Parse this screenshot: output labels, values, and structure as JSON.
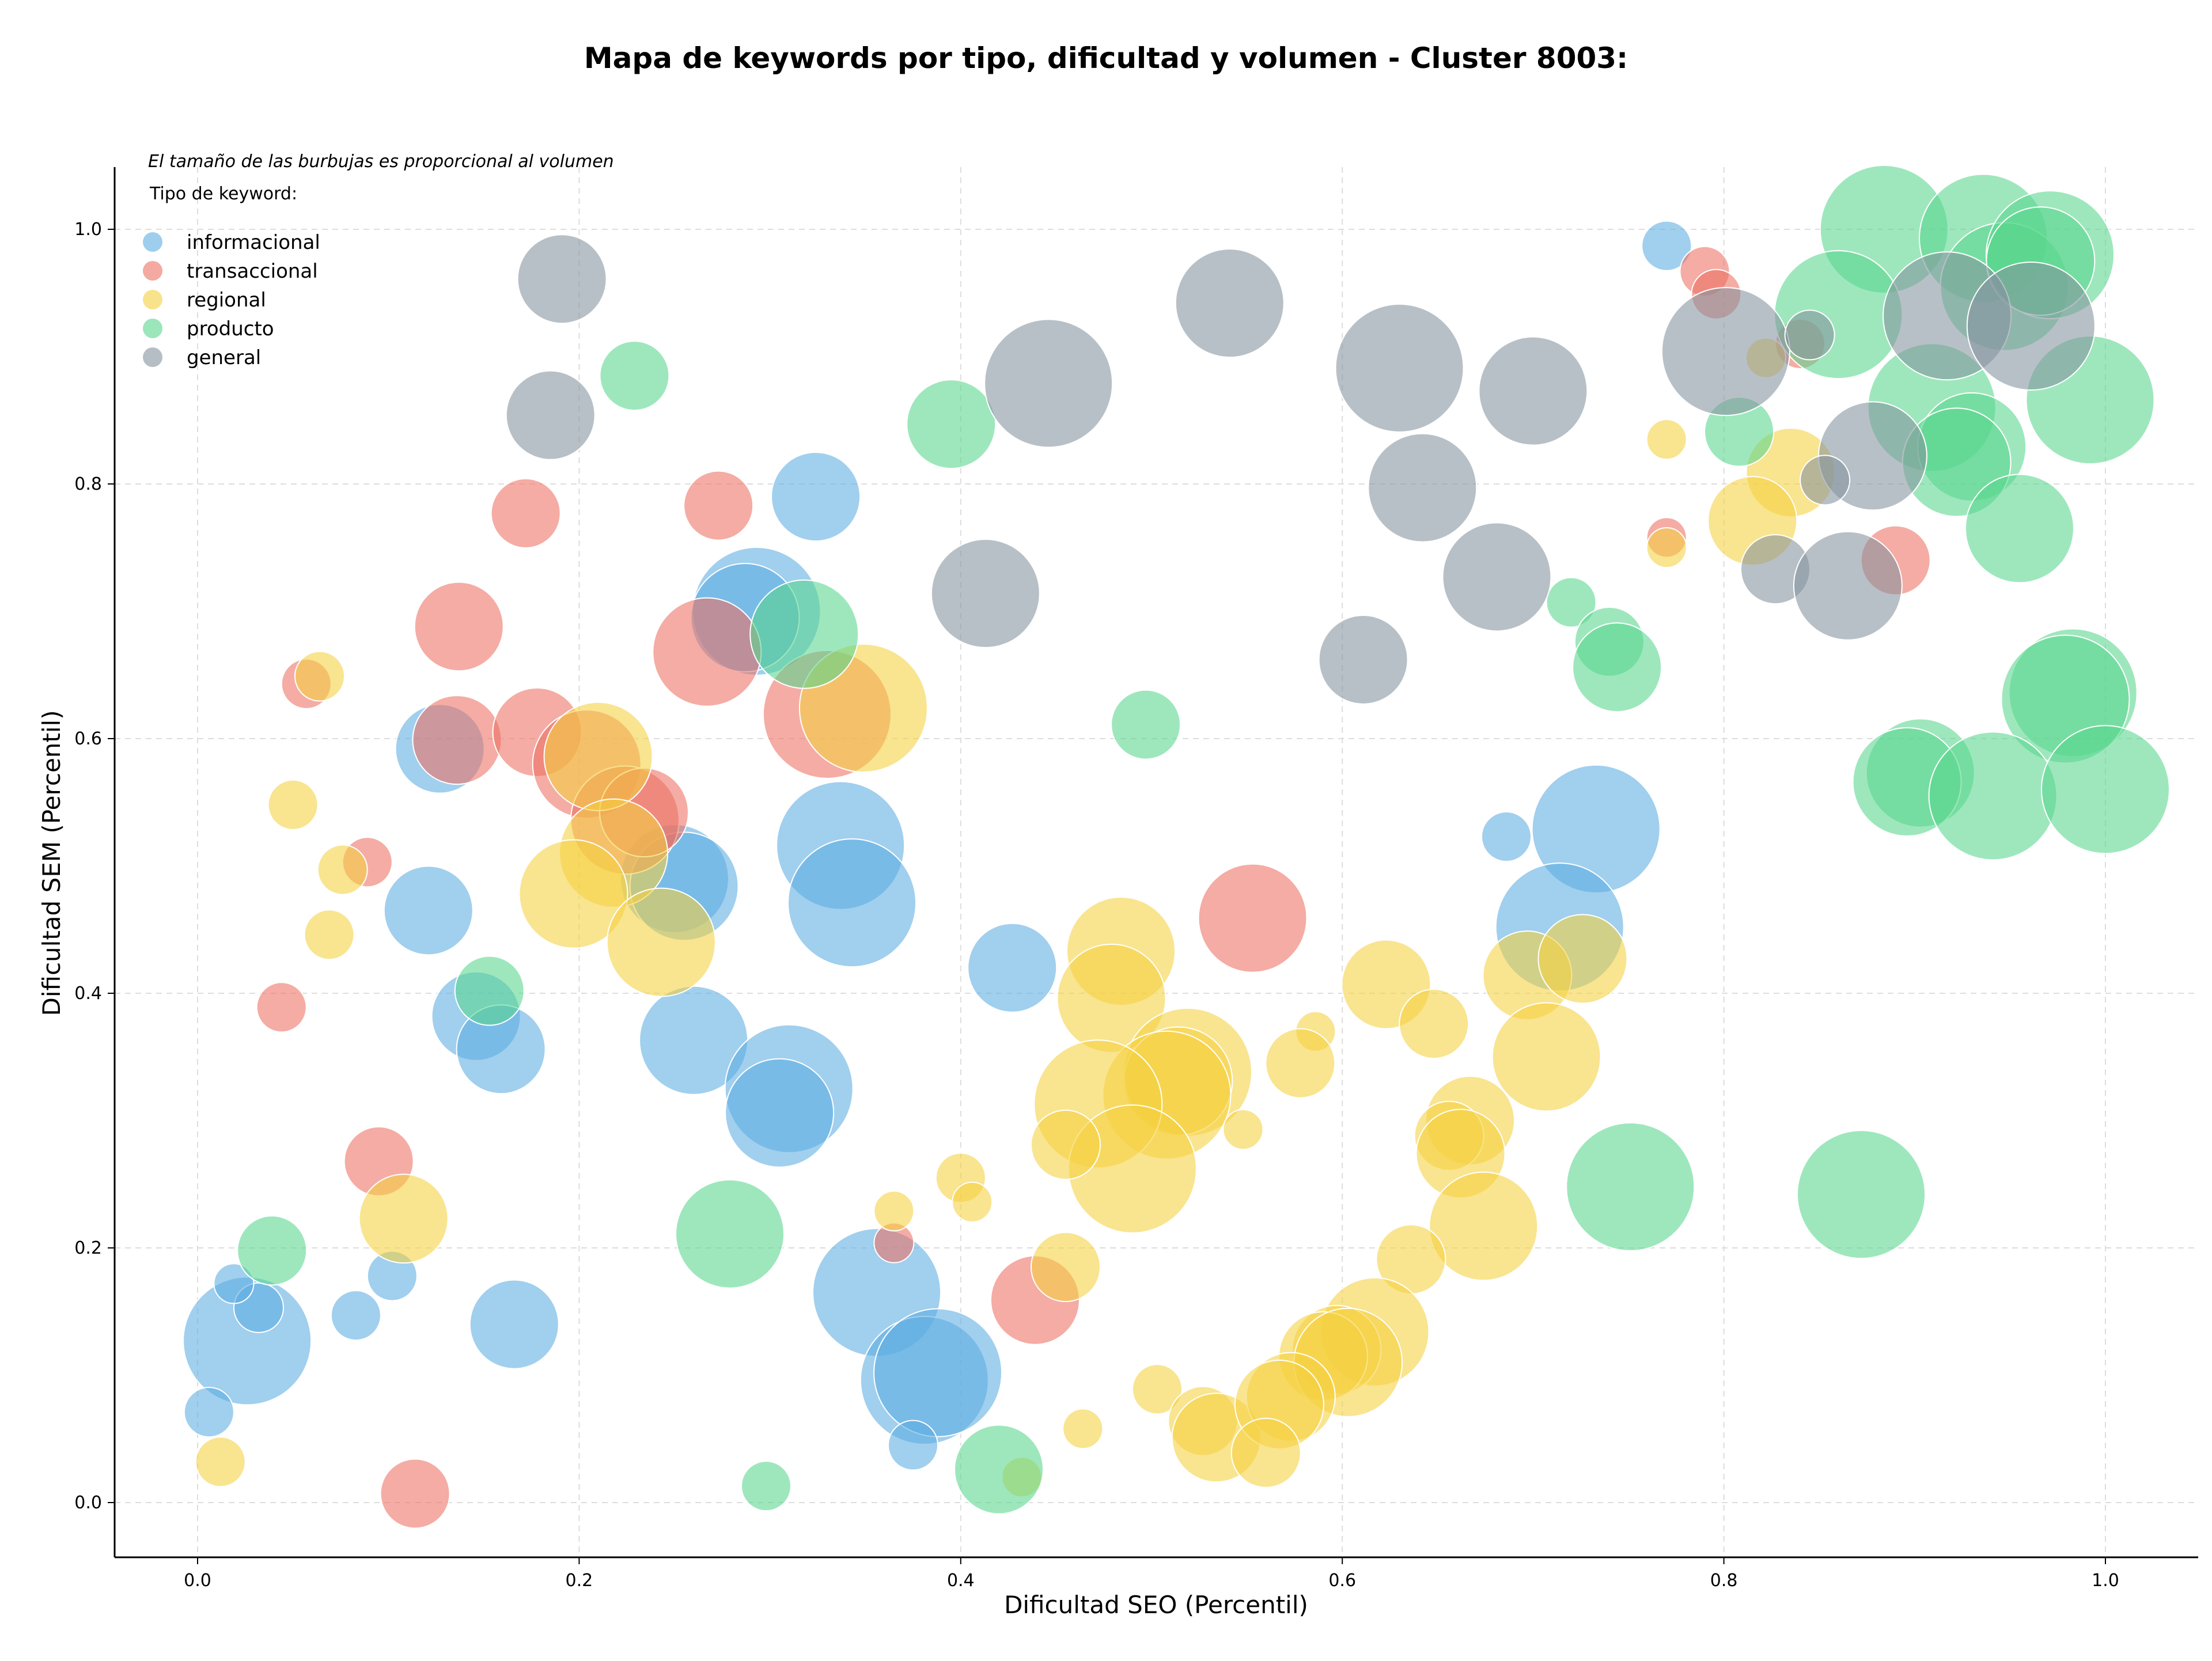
{
  "chart_data": {
    "type": "scatter",
    "title": "Mapa de keywords por tipo, dificultad y volumen - Cluster 8003:",
    "subtitle": "El tamaño de las burbujas es proporcional al volumen",
    "xlabel": "Dificultad SEO (Percentil)",
    "ylabel": "Dificultad SEM (Percentil)",
    "xlim": [
      -0.043,
      1.048
    ],
    "ylim": [
      -0.043,
      1.048
    ],
    "x_ticks": [
      "0.0",
      "0.2",
      "0.4",
      "0.6",
      "0.8",
      "1.0"
    ],
    "y_ticks": [
      "0.0",
      "0.2",
      "0.4",
      "0.6",
      "0.8",
      "1.0"
    ],
    "grid": true,
    "legend_title": "Tipo de keyword:",
    "legend_position": "top-left",
    "size_encoding": "volume",
    "series": [
      {
        "name": "informacional",
        "color": "#5dade2",
        "points": [
          [
            0.77,
            0.987,
            1
          ],
          [
            0.324,
            0.79,
            3
          ],
          [
            0.293,
            0.7,
            5
          ],
          [
            0.287,
            0.695,
            4
          ],
          [
            0.127,
            0.592,
            3
          ],
          [
            0.337,
            0.516,
            5
          ],
          [
            0.25,
            0.49,
            4
          ],
          [
            0.255,
            0.484,
            4
          ],
          [
            0.343,
            0.471,
            5
          ],
          [
            0.121,
            0.465,
            3
          ],
          [
            0.686,
            0.523,
            1
          ],
          [
            0.733,
            0.529,
            5
          ],
          [
            0.714,
            0.452,
            5
          ],
          [
            0.427,
            0.42,
            3
          ],
          [
            0.146,
            0.382,
            3
          ],
          [
            0.159,
            0.356,
            3
          ],
          [
            0.26,
            0.363,
            4
          ],
          [
            0.31,
            0.325,
            5
          ],
          [
            0.305,
            0.306,
            4
          ],
          [
            0.356,
            0.165,
            5
          ],
          [
            0.102,
            0.178,
            1
          ],
          [
            0.166,
            0.14,
            3
          ],
          [
            0.026,
            0.127,
            5
          ],
          [
            0.032,
            0.153,
            1
          ],
          [
            0.019,
            0.172,
            0.5
          ],
          [
            0.083,
            0.147,
            1
          ],
          [
            0.006,
            0.071,
            1
          ],
          [
            0.381,
            0.096,
            5
          ],
          [
            0.388,
            0.102,
            5
          ],
          [
            0.375,
            0.045,
            1
          ]
        ]
      },
      {
        "name": "transaccional",
        "color": "#ec7063",
        "points": [
          [
            0.79,
            0.967,
            1
          ],
          [
            0.796,
            0.949,
            1
          ],
          [
            0.84,
            0.91,
            1
          ],
          [
            0.172,
            0.777,
            2
          ],
          [
            0.273,
            0.783,
            2
          ],
          [
            0.137,
            0.688,
            3
          ],
          [
            0.267,
            0.668,
            4
          ],
          [
            0.057,
            0.643,
            1
          ],
          [
            0.136,
            0.599,
            3
          ],
          [
            0.178,
            0.605,
            3
          ],
          [
            0.204,
            0.58,
            4
          ],
          [
            0.33,
            0.619,
            5
          ],
          [
            0.224,
            0.536,
            4
          ],
          [
            0.234,
            0.542,
            3
          ],
          [
            0.089,
            0.503,
            1
          ],
          [
            0.553,
            0.459,
            4
          ],
          [
            0.044,
            0.389,
            1
          ],
          [
            0.77,
            0.758,
            0.5
          ],
          [
            0.89,
            0.74,
            2
          ],
          [
            0.095,
            0.268,
            2
          ],
          [
            0.365,
            0.204,
            0.5
          ],
          [
            0.439,
            0.159,
            3
          ],
          [
            0.114,
            0.007,
            2
          ]
        ]
      },
      {
        "name": "regional",
        "color": "#f4d03f",
        "points": [
          [
            0.064,
            0.649,
            1
          ],
          [
            0.349,
            0.624,
            5
          ],
          [
            0.21,
            0.586,
            4
          ],
          [
            0.05,
            0.548,
            1
          ],
          [
            0.218,
            0.51,
            4
          ],
          [
            0.076,
            0.497,
            1
          ],
          [
            0.197,
            0.478,
            4
          ],
          [
            0.069,
            0.446,
            1
          ],
          [
            0.243,
            0.44,
            4
          ],
          [
            0.77,
            0.835,
            0.5
          ],
          [
            0.822,
            0.899,
            0.5
          ],
          [
            0.835,
            0.809,
            3
          ],
          [
            0.815,
            0.771,
            3
          ],
          [
            0.77,
            0.75,
            0.5
          ],
          [
            0.484,
            0.433,
            4
          ],
          [
            0.479,
            0.396,
            4
          ],
          [
            0.623,
            0.407,
            3
          ],
          [
            0.697,
            0.414,
            3
          ],
          [
            0.726,
            0.427,
            3
          ],
          [
            0.648,
            0.376,
            2
          ],
          [
            0.586,
            0.37,
            0.5
          ],
          [
            0.707,
            0.35,
            4
          ],
          [
            0.519,
            0.338,
            5
          ],
          [
            0.514,
            0.331,
            4
          ],
          [
            0.508,
            0.32,
            5
          ],
          [
            0.578,
            0.345,
            2
          ],
          [
            0.472,
            0.313,
            5
          ],
          [
            0.49,
            0.262,
            5
          ],
          [
            0.548,
            0.293,
            0.5
          ],
          [
            0.455,
            0.281,
            2
          ],
          [
            0.667,
            0.3,
            3
          ],
          [
            0.656,
            0.288,
            2
          ],
          [
            0.662,
            0.274,
            3
          ],
          [
            0.4,
            0.255,
            1
          ],
          [
            0.406,
            0.236,
            0.5
          ],
          [
            0.365,
            0.229,
            0.5
          ],
          [
            0.674,
            0.217,
            4
          ],
          [
            0.108,
            0.223,
            3
          ],
          [
            0.455,
            0.185,
            2
          ],
          [
            0.636,
            0.191,
            2
          ],
          [
            0.617,
            0.134,
            4
          ],
          [
            0.597,
            0.12,
            3
          ],
          [
            0.59,
            0.115,
            3
          ],
          [
            0.603,
            0.11,
            4
          ],
          [
            0.503,
            0.089,
            1
          ],
          [
            0.527,
            0.064,
            2
          ],
          [
            0.534,
            0.051,
            3
          ],
          [
            0.573,
            0.083,
            3
          ],
          [
            0.567,
            0.077,
            3
          ],
          [
            0.56,
            0.039,
            2
          ],
          [
            0.464,
            0.058,
            0.5
          ],
          [
            0.432,
            0.02,
            0.5
          ],
          [
            0.012,
            0.032,
            1
          ]
        ]
      },
      {
        "name": "producto",
        "color": "#58d68d",
        "points": [
          [
            0.884,
            1.0,
            5
          ],
          [
            0.936,
            0.993,
            5
          ],
          [
            0.947,
            0.955,
            5
          ],
          [
            0.971,
            0.98,
            5
          ],
          [
            0.966,
            0.975,
            4
          ],
          [
            0.86,
            0.933,
            5
          ],
          [
            0.808,
            0.841,
            2
          ],
          [
            0.909,
            0.86,
            5
          ],
          [
            0.93,
            0.829,
            4
          ],
          [
            0.922,
            0.817,
            4
          ],
          [
            0.992,
            0.866,
            5
          ],
          [
            0.955,
            0.765,
            4
          ],
          [
            0.229,
            0.885,
            2
          ],
          [
            0.395,
            0.847,
            3
          ],
          [
            0.318,
            0.682,
            4
          ],
          [
            0.72,
            0.707,
            1
          ],
          [
            0.74,
            0.676,
            2
          ],
          [
            0.744,
            0.656,
            3
          ],
          [
            0.497,
            0.611,
            2
          ],
          [
            0.983,
            0.636,
            5
          ],
          [
            0.979,
            0.631,
            5
          ],
          [
            0.903,
            0.573,
            4
          ],
          [
            0.896,
            0.566,
            4
          ],
          [
            0.941,
            0.555,
            5
          ],
          [
            1.0,
            0.56,
            5
          ],
          [
            0.153,
            0.402,
            2
          ],
          [
            0.751,
            0.248,
            5
          ],
          [
            0.872,
            0.242,
            5
          ],
          [
            0.279,
            0.211,
            4
          ],
          [
            0.039,
            0.198,
            2
          ],
          [
            0.42,
            0.026,
            3
          ],
          [
            0.298,
            0.013,
            1
          ]
        ]
      },
      {
        "name": "general",
        "color": "#85929e",
        "points": [
          [
            0.191,
            0.961,
            3
          ],
          [
            0.185,
            0.854,
            3
          ],
          [
            0.446,
            0.879,
            5
          ],
          [
            0.541,
            0.942,
            4
          ],
          [
            0.63,
            0.891,
            5
          ],
          [
            0.7,
            0.873,
            4
          ],
          [
            0.642,
            0.797,
            4
          ],
          [
            0.413,
            0.714,
            4
          ],
          [
            0.681,
            0.727,
            4
          ],
          [
            0.611,
            0.662,
            3
          ],
          [
            0.801,
            0.904,
            5
          ],
          [
            0.917,
            0.932,
            5
          ],
          [
            0.961,
            0.924,
            5
          ],
          [
            0.845,
            0.917,
            1
          ],
          [
            0.878,
            0.822,
            4
          ],
          [
            0.853,
            0.803,
            1
          ],
          [
            0.827,
            0.733,
            2
          ],
          [
            0.865,
            0.72,
            4
          ]
        ]
      }
    ]
  }
}
